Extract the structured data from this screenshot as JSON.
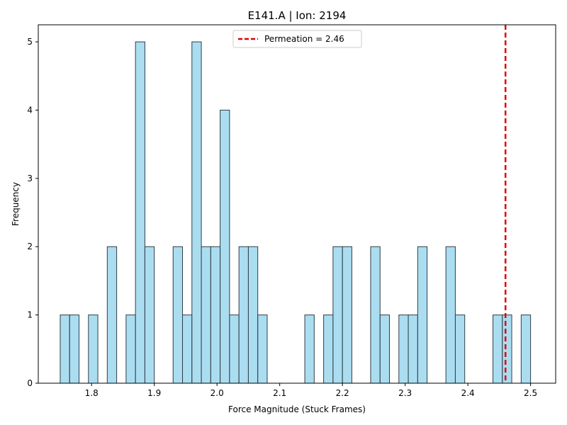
{
  "chart_data": {
    "type": "bar",
    "title": "E141.A | Ion: 2194",
    "xlabel": "Force Magnitude (Stuck Frames)",
    "ylabel": "Frequency",
    "xlim": [
      1.715,
      2.54
    ],
    "ylim": [
      0,
      5.25
    ],
    "x_ticks": [
      1.8,
      1.9,
      2.0,
      2.1,
      2.2,
      2.3,
      2.4,
      2.5
    ],
    "y_ticks": [
      0,
      1,
      2,
      3,
      4,
      5
    ],
    "bins": [
      {
        "x0": 1.75,
        "x1": 1.765,
        "count": 1
      },
      {
        "x0": 1.765,
        "x1": 1.78,
        "count": 1
      },
      {
        "x0": 1.795,
        "x1": 1.81,
        "count": 1
      },
      {
        "x0": 1.825,
        "x1": 1.84,
        "count": 2
      },
      {
        "x0": 1.855,
        "x1": 1.87,
        "count": 1
      },
      {
        "x0": 1.87,
        "x1": 1.885,
        "count": 5
      },
      {
        "x0": 1.885,
        "x1": 1.9,
        "count": 2
      },
      {
        "x0": 1.93,
        "x1": 1.945,
        "count": 2
      },
      {
        "x0": 1.945,
        "x1": 1.96,
        "count": 1
      },
      {
        "x0": 1.96,
        "x1": 1.975,
        "count": 5
      },
      {
        "x0": 1.975,
        "x1": 1.99,
        "count": 2
      },
      {
        "x0": 1.99,
        "x1": 2.005,
        "count": 2
      },
      {
        "x0": 2.005,
        "x1": 2.02,
        "count": 4
      },
      {
        "x0": 2.02,
        "x1": 2.035,
        "count": 1
      },
      {
        "x0": 2.035,
        "x1": 2.05,
        "count": 2
      },
      {
        "x0": 2.05,
        "x1": 2.065,
        "count": 2
      },
      {
        "x0": 2.065,
        "x1": 2.08,
        "count": 1
      },
      {
        "x0": 2.14,
        "x1": 2.155,
        "count": 1
      },
      {
        "x0": 2.17,
        "x1": 2.185,
        "count": 1
      },
      {
        "x0": 2.185,
        "x1": 2.2,
        "count": 2
      },
      {
        "x0": 2.2,
        "x1": 2.215,
        "count": 2
      },
      {
        "x0": 2.245,
        "x1": 2.26,
        "count": 2
      },
      {
        "x0": 2.26,
        "x1": 2.275,
        "count": 1
      },
      {
        "x0": 2.29,
        "x1": 2.305,
        "count": 1
      },
      {
        "x0": 2.305,
        "x1": 2.32,
        "count": 1
      },
      {
        "x0": 2.32,
        "x1": 2.335,
        "count": 2
      },
      {
        "x0": 2.365,
        "x1": 2.38,
        "count": 2
      },
      {
        "x0": 2.38,
        "x1": 2.395,
        "count": 1
      },
      {
        "x0": 2.44,
        "x1": 2.455,
        "count": 1
      },
      {
        "x0": 2.455,
        "x1": 2.47,
        "count": 1
      },
      {
        "x0": 2.485,
        "x1": 2.5,
        "count": 1
      }
    ],
    "reference_line": {
      "label": "Permeation = 2.46",
      "x": 2.46
    },
    "legend_position": "upper-center",
    "colors": {
      "bar_fill": "#87ceeb",
      "bar_edge": "#2f3f45",
      "reference": "#e00000"
    }
  }
}
